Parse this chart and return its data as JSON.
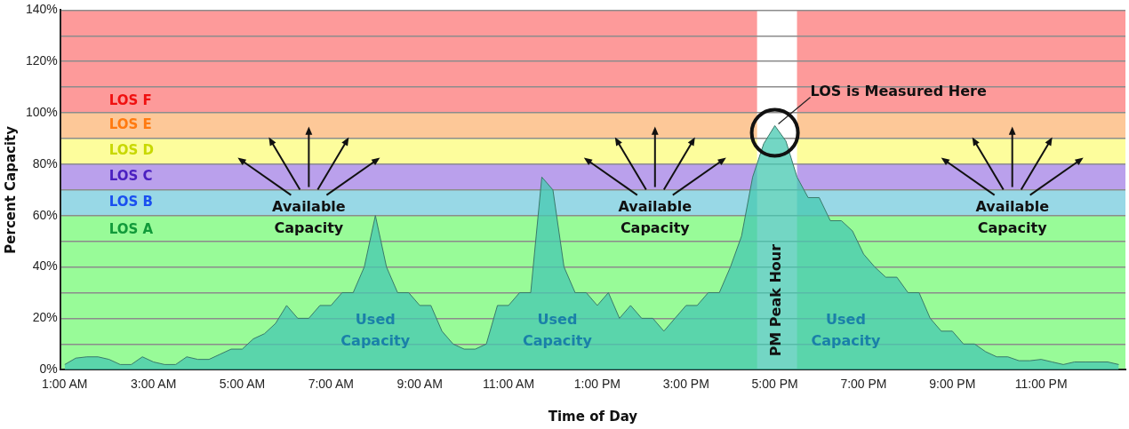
{
  "chart_data": {
    "type": "area",
    "xlabel": "Time of Day",
    "ylabel": "Percent Capacity",
    "x": [
      1,
      1.25,
      1.5,
      1.75,
      2,
      2.25,
      2.5,
      2.75,
      3,
      3.25,
      3.5,
      3.75,
      4,
      4.25,
      4.5,
      4.75,
      5,
      5.25,
      5.5,
      5.75,
      6,
      6.25,
      6.5,
      6.75,
      7,
      7.25,
      7.5,
      7.75,
      8,
      8.25,
      8.5,
      8.75,
      9,
      9.25,
      9.5,
      9.75,
      10,
      10.25,
      10.5,
      10.75,
      11,
      11.25,
      11.5,
      11.75,
      12,
      12.25,
      12.5,
      12.75,
      13,
      13.25,
      13.5,
      13.75,
      14,
      14.25,
      14.5,
      14.75,
      15,
      15.25,
      15.5,
      15.75,
      16,
      16.25,
      16.5,
      16.75,
      17,
      17.25,
      17.5,
      17.75,
      18,
      18.25,
      18.5,
      18.75,
      19,
      19.25,
      19.5,
      19.75,
      20,
      20.25,
      20.5,
      20.75,
      21,
      21.25,
      21.5,
      21.75,
      22,
      22.25,
      22.5,
      22.75,
      23,
      23.25,
      23.5,
      23.75,
      24,
      24.5,
      24.75
    ],
    "series": [
      {
        "color": "#45c8b0",
        "values": [
          2,
          4.5,
          5,
          5,
          4,
          2,
          2,
          5,
          3,
          2,
          2,
          5,
          4,
          4,
          6,
          8,
          8,
          12,
          14,
          18,
          25,
          20,
          20,
          25,
          25,
          30,
          30,
          40,
          60,
          40,
          30,
          30,
          25,
          25,
          15,
          10,
          8,
          8,
          10,
          25,
          25,
          30,
          30,
          75,
          70,
          40,
          30,
          30,
          25,
          30,
          20,
          25,
          20,
          20,
          15,
          20,
          25,
          25,
          30,
          30,
          40,
          52,
          75,
          88,
          95,
          89,
          75,
          67,
          67,
          58,
          58,
          54,
          45,
          40,
          36,
          36,
          30,
          30,
          20,
          15,
          15,
          10,
          10,
          7,
          5,
          5,
          3.5,
          3.5,
          4,
          3,
          2,
          3,
          3,
          3,
          2
        ]
      }
    ],
    "xlim": [
      0.9,
      24.9
    ],
    "xticks": [
      {
        "value": 1,
        "label": "1:00 AM"
      },
      {
        "value": 3,
        "label": "3:00 AM"
      },
      {
        "value": 5,
        "label": "5:00 AM"
      },
      {
        "value": 7,
        "label": "7:00 AM"
      },
      {
        "value": 9,
        "label": "9:00 AM"
      },
      {
        "value": 11,
        "label": "11:00 AM"
      },
      {
        "value": 13,
        "label": "1:00 PM"
      },
      {
        "value": 15,
        "label": "3:00 PM"
      },
      {
        "value": 17,
        "label": "5:00 PM"
      },
      {
        "value": 19,
        "label": "7:00 PM"
      },
      {
        "value": 21,
        "label": "9:00 PM"
      },
      {
        "value": 23,
        "label": "11:00 PM"
      }
    ],
    "ylim": [
      0,
      140
    ],
    "yticks": [
      {
        "value": 0,
        "label": "0%"
      },
      {
        "value": 10,
        "label": null
      },
      {
        "value": 20,
        "label": "20%"
      },
      {
        "value": 30,
        "label": null
      },
      {
        "value": 40,
        "label": "40%"
      },
      {
        "value": 50,
        "label": null
      },
      {
        "value": 60,
        "label": "60%"
      },
      {
        "value": 70,
        "label": null
      },
      {
        "value": 80,
        "label": "80%"
      },
      {
        "value": 90,
        "label": null
      },
      {
        "value": 100,
        "label": "100%"
      },
      {
        "value": 110,
        "label": null
      },
      {
        "value": 120,
        "label": "120%"
      },
      {
        "value": 130,
        "label": null
      },
      {
        "value": 140,
        "label": "140%"
      }
    ],
    "grid": "y",
    "bands": [
      {
        "axis": "y",
        "from": 0,
        "to": 60,
        "label": "LOS A",
        "color": "#98fb98"
      },
      {
        "axis": "y",
        "from": 60,
        "to": 70,
        "label": "LOS B",
        "color": "#98d8e6"
      },
      {
        "axis": "y",
        "from": 70,
        "to": 80,
        "label": "LOS C",
        "color": "#baa0ec"
      },
      {
        "axis": "y",
        "from": 80,
        "to": 90,
        "label": "LOS D",
        "color": "#fdfd9c"
      },
      {
        "axis": "y",
        "from": 90,
        "to": 100,
        "label": "LOS E",
        "color": "#fdc898"
      },
      {
        "axis": "y",
        "from": 100,
        "to": 140,
        "label": "LOS F",
        "color": "#fd9a9a"
      },
      {
        "axis": "x",
        "from": 16.6,
        "to": 17.5,
        "label": "PM Peak Hour",
        "color": "#ffffff"
      }
    ],
    "annotations": [
      {
        "text": "Available Capacity",
        "x": 6.5,
        "y": 59
      },
      {
        "text": "Available Capacity",
        "x": 14.3,
        "y": 59
      },
      {
        "text": "Available Capacity",
        "x": 22.35,
        "y": 59
      },
      "Used Capacity",
      "Used Capacity",
      "Used Capacity",
      {
        "text": "LOS is Measured Here",
        "x": 17,
        "y": 95
      }
    ]
  }
}
